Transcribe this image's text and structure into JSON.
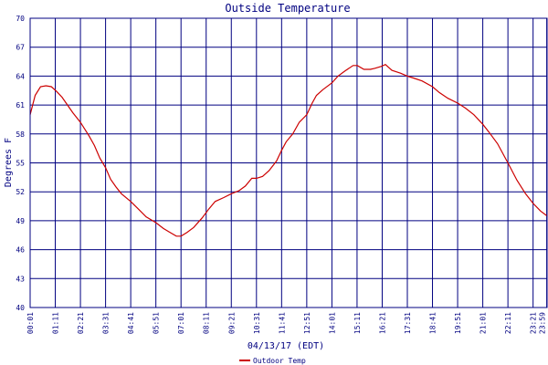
{
  "chart_data": {
    "type": "line",
    "title": "Outside Temperature",
    "xlabel": "04/13/17 (EDT)",
    "ylabel": "Degrees F",
    "ylim": [
      40,
      70
    ],
    "yticks": [
      40,
      43,
      46,
      49,
      52,
      55,
      58,
      61,
      64,
      67,
      70
    ],
    "xlim": [
      0.0167,
      24.0
    ],
    "xticks": [
      {
        "label": "00:01",
        "hour": 0.0167
      },
      {
        "label": "01:11",
        "hour": 1.1833
      },
      {
        "label": "02:21",
        "hour": 2.35
      },
      {
        "label": "03:31",
        "hour": 3.5167
      },
      {
        "label": "04:41",
        "hour": 4.6833
      },
      {
        "label": "05:51",
        "hour": 5.85
      },
      {
        "label": "07:01",
        "hour": 7.0167
      },
      {
        "label": "08:11",
        "hour": 8.1833
      },
      {
        "label": "09:21",
        "hour": 9.35
      },
      {
        "label": "10:31",
        "hour": 10.5167
      },
      {
        "label": "11:41",
        "hour": 11.6833
      },
      {
        "label": "12:51",
        "hour": 12.85
      },
      {
        "label": "14:01",
        "hour": 14.0167
      },
      {
        "label": "15:11",
        "hour": 15.1833
      },
      {
        "label": "16:21",
        "hour": 16.35
      },
      {
        "label": "17:31",
        "hour": 17.5167
      },
      {
        "label": "18:41",
        "hour": 18.6833
      },
      {
        "label": "19:51",
        "hour": 19.85
      },
      {
        "label": "21:01",
        "hour": 21.0167
      },
      {
        "label": "22:11",
        "hour": 22.1833
      },
      {
        "label": "23:21",
        "hour": 23.35
      },
      {
        "label": "23:59",
        "hour": 23.9833
      }
    ],
    "grid": true,
    "legend_position": "bottom-left",
    "colors": {
      "line": "#cc0000",
      "grid": "#000080",
      "text": "#000080"
    },
    "series": [
      {
        "name": "Outdoor Temp",
        "x": [
          0.0167,
          0.25,
          0.5,
          0.75,
          1.0,
          1.25,
          1.5,
          1.75,
          2.0,
          2.35,
          2.75,
          3.0,
          3.25,
          3.5167,
          3.75,
          4.0,
          4.25,
          4.6833,
          5.0,
          5.4,
          5.85,
          6.2,
          6.5,
          6.8,
          7.0167,
          7.3,
          7.6,
          8.0,
          8.3,
          8.6,
          9.0,
          9.35,
          9.7,
          10.0,
          10.3,
          10.5167,
          10.8,
          11.1,
          11.45,
          11.6833,
          11.9,
          12.2,
          12.5,
          12.85,
          13.1,
          13.3,
          13.6,
          14.0167,
          14.3,
          14.6,
          15.0,
          15.2,
          15.5,
          15.8,
          16.0,
          16.3,
          16.5,
          16.8,
          17.2,
          17.5167,
          17.8,
          18.2,
          18.6833,
          19.0,
          19.4,
          19.85,
          20.2,
          20.6,
          21.0167,
          21.3,
          21.7,
          22.1833,
          22.6,
          23.0,
          23.35,
          23.7,
          24.0
        ],
        "values": [
          60.0,
          62.0,
          62.9,
          63.0,
          62.9,
          62.4,
          61.8,
          61.0,
          60.2,
          59.2,
          57.8,
          56.8,
          55.5,
          54.5,
          53.3,
          52.5,
          51.8,
          51.0,
          50.3,
          49.4,
          48.8,
          48.2,
          47.8,
          47.4,
          47.4,
          47.8,
          48.3,
          49.3,
          50.2,
          51.0,
          51.4,
          51.8,
          52.1,
          52.6,
          53.4,
          53.4,
          53.6,
          54.2,
          55.2,
          56.3,
          57.2,
          58.0,
          59.2,
          60.0,
          61.2,
          62.0,
          62.6,
          63.3,
          64.0,
          64.5,
          65.1,
          65.1,
          64.7,
          64.7,
          64.8,
          65.0,
          65.2,
          64.6,
          64.3,
          64.0,
          63.8,
          63.5,
          62.9,
          62.3,
          61.7,
          61.2,
          60.7,
          60.0,
          59.0,
          58.2,
          57.0,
          55.0,
          53.2,
          51.8,
          50.8,
          50.0,
          49.5
        ]
      }
    ]
  }
}
